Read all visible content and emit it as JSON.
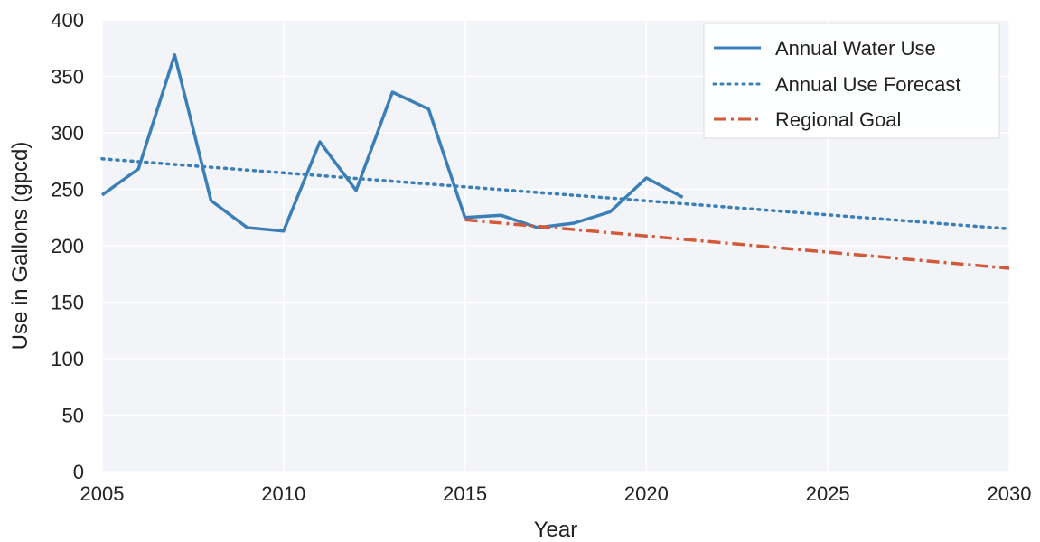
{
  "chart_data": {
    "type": "line",
    "title": "",
    "xlabel": "Year",
    "ylabel": "Use in Gallons (gpcd)",
    "xlim": [
      2005,
      2030
    ],
    "ylim": [
      0,
      400
    ],
    "x_ticks": [
      "2005",
      "2010",
      "2015",
      "2020",
      "2025",
      "2030"
    ],
    "y_ticks": [
      "0",
      "50",
      "100",
      "150",
      "200",
      "250",
      "300",
      "350",
      "400"
    ],
    "grid": true,
    "legend_position": "top-right",
    "series": [
      {
        "name": "Annual Water Use",
        "style": "solid",
        "color": "#3a7fb8",
        "x": [
          2005,
          2006,
          2007,
          2008,
          2009,
          2010,
          2011,
          2012,
          2013,
          2014,
          2015,
          2016,
          2017,
          2018,
          2019,
          2020,
          2021
        ],
        "y": [
          245,
          268,
          369,
          240,
          216,
          213,
          292,
          249,
          336,
          321,
          225,
          227,
          216,
          220,
          230,
          260,
          243
        ]
      },
      {
        "name": "Annual Use Forecast",
        "style": "dotted",
        "color": "#3a7fb8",
        "x": [
          2005,
          2030
        ],
        "y": [
          277,
          215
        ]
      },
      {
        "name": "Regional Goal",
        "style": "dashdot",
        "color": "#d2593a",
        "x": [
          2015,
          2030
        ],
        "y": [
          223,
          180
        ]
      }
    ]
  }
}
